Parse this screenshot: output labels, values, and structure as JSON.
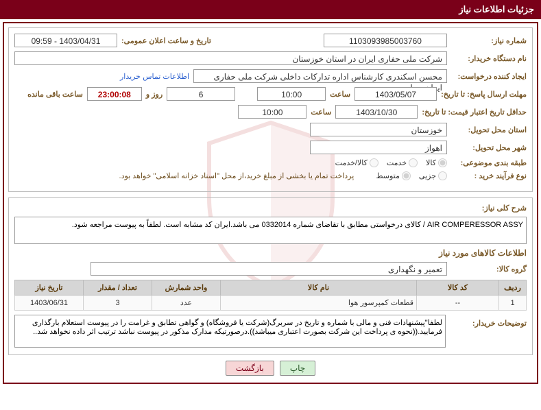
{
  "panel_title": "جزئیات اطلاعات نیاز",
  "labels": {
    "need_no": "شماره نیاز:",
    "announce_dt": "تاریخ و ساعت اعلان عمومی:",
    "buyer_org": "نام دستگاه خریدار:",
    "requester": "ایجاد کننده درخواست:",
    "contact_link": "اطلاعات تماس خریدار",
    "reply_deadline": "مهلت ارسال پاسخ: تا تاریخ:",
    "time": "ساعت",
    "days_and": "روز و",
    "remaining": "ساعت باقی مانده",
    "price_validity": "حداقل تاریخ اعتبار قیمت: تا تاریخ:",
    "delivery_province": "استان محل تحویل:",
    "delivery_city": "شهر محل تحویل:",
    "subject_class": "طبقه بندی موضوعی:",
    "purchase_type": "نوع فرآیند خرید :",
    "payment_note": "پرداخت تمام یا بخشی از مبلغ خرید،از محل \"اسناد خزانه اسلامی\" خواهد بود.",
    "overall_desc": "شرح کلی نیاز:",
    "goods_info": "اطلاعات کالاهای مورد نیاز",
    "goods_group": "گروه کالا:",
    "buyer_remarks": "توضیحات خریدار:"
  },
  "values": {
    "need_no": "1103093985003760",
    "announce_dt": "1403/04/31 - 09:59",
    "buyer_org": "شرکت ملی حفاری ایران در استان خوزستان",
    "requester": "محسن اسکندری کارشناس اداره تدارکات داخلی  شرکت ملی حفاری ایران در ا",
    "reply_date": "1403/05/07",
    "reply_time": "10:00",
    "days_left": "6",
    "countdown": "23:00:08",
    "validity_date": "1403/10/30",
    "validity_time": "10:00",
    "province": "خوزستان",
    "city": "اهواز",
    "goods_group": "تعمیر و نگهداری"
  },
  "subject_class": {
    "options": [
      {
        "key": "goods",
        "label": "کالا",
        "checked": true
      },
      {
        "key": "service",
        "label": "خدمت",
        "checked": false
      },
      {
        "key": "goods_service",
        "label": "کالا/خدمت",
        "checked": false
      }
    ]
  },
  "purchase_type": {
    "options": [
      {
        "key": "partial",
        "label": "جزیی",
        "checked": false
      },
      {
        "key": "medium",
        "label": "متوسط",
        "checked": true
      }
    ]
  },
  "overall_desc": "AIR COMPERESSOR ASSY / کالای درخواستی مطابق با تقاضای شماره 0332014 می باشد.ایران کد مشابه است. لطفاً به پیوست مراجعه شود.",
  "table": {
    "columns": [
      "ردیف",
      "کد کالا",
      "نام کالا",
      "واحد شمارش",
      "تعداد / مقدار",
      "تاریخ نیاز"
    ],
    "col_widths": [
      "40px",
      "120px",
      "auto",
      "100px",
      "100px",
      "100px"
    ],
    "rows": [
      {
        "idx": "1",
        "code": "--",
        "name": "قطعات کمپرسور هوا",
        "unit": "عدد",
        "qty": "3",
        "date": "1403/06/31"
      }
    ]
  },
  "buyer_remarks": "لطفا\"پیشنهادات فنی و مالی با شماره و تاریخ در سربرگ(شرکت یا فروشگاه) و گواهی تطابق و غرامت را در پیوست استعلام بارگذاری فرمایید.((نحوه ی پرداخت این شرکت بصورت اعتباری میباشد)).درصورتیکه مدارک مذکور در پیوست نباشد ترتیب اثر داده نخواهد شد..",
  "buttons": {
    "print": "چاپ",
    "back": "بازگشت"
  },
  "colors": {
    "header_bg": "#7a0019",
    "label": "#7a5a2a",
    "link": "#2a5fcf",
    "countdown": "#b00000"
  }
}
